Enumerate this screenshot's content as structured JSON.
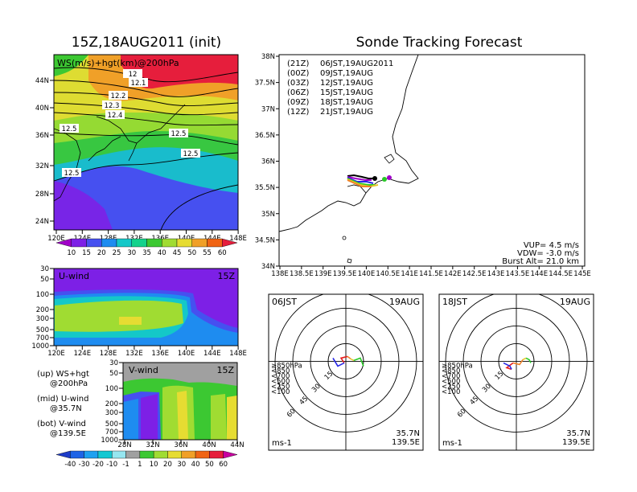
{
  "left_title": "15Z,18AUG2011 (init)",
  "right_title": "Sonde Tracking Forecast",
  "map_panel": {
    "label": "WS(m/s)+hgt(km)@200hPa",
    "lat_ticks": [
      "44N",
      "40N",
      "36N",
      "32N",
      "28N",
      "24N"
    ],
    "lon_ticks": [
      "120E",
      "124E",
      "128E",
      "132E",
      "136E",
      "140E",
      "144E",
      "148E"
    ],
    "contour_labels": [
      "12",
      "12.1",
      "12.2",
      "12.3",
      "12.4",
      "12.5",
      "12.5",
      "12.5",
      "12.5"
    ]
  },
  "ws_colorbar": {
    "labels": [
      "10",
      "15",
      "20",
      "25",
      "30",
      "35",
      "40",
      "45",
      "50",
      "55",
      "60"
    ],
    "colors": [
      "#a000c8",
      "#7d20e6",
      "#4650f0",
      "#1e8cf0",
      "#14c8c8",
      "#14d28c",
      "#3cc832",
      "#a0dc32",
      "#e6dc32",
      "#f0a028",
      "#f06414",
      "#e61e3c"
    ]
  },
  "u_panel": {
    "label": "U-wind",
    "time": "15Z",
    "p_ticks": [
      "30",
      "50",
      "100",
      "200",
      "300",
      "500",
      "700",
      "1000"
    ],
    "lon_ticks": [
      "120E",
      "124E",
      "128E",
      "132E",
      "136E",
      "140E",
      "144E",
      "148E"
    ]
  },
  "v_panel": {
    "label": "V-wind",
    "time": "15Z",
    "p_ticks": [
      "30",
      "50",
      "100",
      "200",
      "300",
      "500",
      "700",
      "1000"
    ],
    "lat_ticks": [
      "28N",
      "32N",
      "36N",
      "40N",
      "44N"
    ]
  },
  "side_notes": [
    {
      "l1": "(up) WS+hgt",
      "l2": "@200hPa"
    },
    {
      "l1": "(mid) U-wind",
      "l2": "@35.7N"
    },
    {
      "l1": "(bot) V-wind",
      "l2": "@139.5E"
    }
  ],
  "wind_colorbar": {
    "labels": [
      "-40",
      "-30",
      "-20",
      "-10",
      "-1",
      "1",
      "10",
      "20",
      "30",
      "40",
      "50",
      "60"
    ],
    "colors": [
      "#1e3cc8",
      "#1e64e6",
      "#1ea0f0",
      "#14c8d2",
      "#96e6f0",
      "#a0a0a0",
      "#3cc832",
      "#a0dc32",
      "#e6dc32",
      "#f0a028",
      "#f06414",
      "#e61e3c",
      "#c800a0"
    ]
  },
  "track_map": {
    "lat_ticks": [
      "38N",
      "37.5N",
      "37N",
      "36.5N",
      "36N",
      "35.5N",
      "35N",
      "34.5N",
      "34N"
    ],
    "lon_ticks": [
      "138E",
      "138.5E",
      "139E",
      "139.5E",
      "140E",
      "140.5E",
      "141E",
      "141.5E",
      "142E",
      "142.5E",
      "143E",
      "143.5E",
      "144E",
      "144.5E",
      "145E"
    ],
    "legend": [
      {
        "utc": "(21Z)",
        "jst": "06JST,19AUG2011",
        "color": "#000000"
      },
      {
        "utc": "(00Z)",
        "jst": "09JST,19AUG",
        "color": "#a000c8"
      },
      {
        "utc": "(03Z)",
        "jst": "12JST,19AUG",
        "color": "#2828e6"
      },
      {
        "utc": "(06Z)",
        "jst": "15JST,19AUG",
        "color": "#28c828"
      },
      {
        "utc": "(09Z)",
        "jst": "18JST,19AUG",
        "color": "#e6c828"
      },
      {
        "utc": "(12Z)",
        "jst": "21JST,19AUG",
        "color": "#f08228"
      }
    ],
    "params": [
      "VUP= 4.5 m/s",
      "VDW= -3.0 m/s",
      "Burst Alt= 21.0 km"
    ]
  },
  "hodo_left": {
    "time": "06JST",
    "date": "19AUG",
    "unit": "ms-1",
    "lat": "35.7N",
    "lon": "139.5E",
    "rings": [
      "15",
      "30",
      "45",
      "60"
    ]
  },
  "hodo_right": {
    "time": "18JST",
    "date": "19AUG",
    "unit": "ms-1",
    "lat": "35.7N",
    "lon": "139.5E",
    "rings": [
      "15",
      "30",
      "45",
      "60"
    ]
  },
  "hodo_legend": [
    {
      "text": "≥850hPa",
      "color": "#e61e1e"
    },
    {
      "text": "<850",
      "color": "#f08228"
    },
    {
      "text": "<700",
      "color": "#e6c828"
    },
    {
      "text": "<500",
      "color": "#28c828"
    },
    {
      "text": "<250",
      "color": "#14c8d2"
    },
    {
      "text": "<100",
      "color": "#2828e6"
    }
  ]
}
